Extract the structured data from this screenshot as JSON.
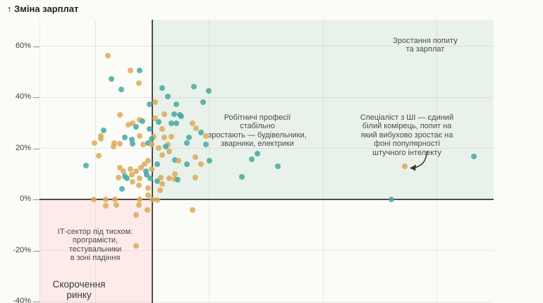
{
  "title": "↑ Зміна зарплат",
  "colors": {
    "teal": "#47a8a2",
    "orange": "#dcaa58",
    "quadrant_green_bg": "#e9f1eb",
    "quadrant_pink_bg": "#fcebe8",
    "axis_dark": "#4c4c4c",
    "page_bg": "#fbfbf8"
  },
  "annotations": {
    "growth": {
      "lines": [
        "Зростання попиту",
        "та зарплат"
      ]
    },
    "trades": {
      "lines": [
        "Робітничі професії",
        "стабільно",
        "зростають — будівельники,",
        "зварники, електрики"
      ]
    },
    "ai": {
      "lines": [
        "Спеціаліст з ШІ — єдиний",
        "білий комірець, попит на",
        "який вибухово зростає на",
        "фоні популярності",
        "штучного інтелекту"
      ]
    },
    "it_pressure": {
      "lines": [
        "ІТ-сектор під тиском:",
        "програмісти,",
        "тестувальники",
        "в зоні падіння"
      ]
    },
    "shrink": {
      "lines": [
        "Скорочення",
        "ринку"
      ]
    }
  },
  "chart_data": {
    "type": "scatter",
    "title": "Зміна зарплат",
    "ylabel": "Зміна зарплат",
    "y_unit": "%",
    "xlabel": "",
    "x_axis_note": "x tick labels not visible in crop; x given as screen px",
    "ylim": [
      -40,
      62
    ],
    "grid": true,
    "y_ticks": [
      {
        "label": "60%",
        "value": 60
      },
      {
        "label": "40%",
        "value": 40
      },
      {
        "label": "20%",
        "value": 20
      },
      {
        "label": "0%",
        "value": 0
      },
      {
        "label": "-20%",
        "value": -20
      },
      {
        "label": "-40%",
        "value": -40
      }
    ],
    "series_colors": {
      "t": "#47a8a2",
      "o": "#dcaa58"
    },
    "series_names": {
      "t": "teal",
      "o": "orange"
    },
    "points": [
      [
        153,
        56.3,
        "o"
      ],
      [
        185,
        50.5,
        "o"
      ],
      [
        198,
        50.5,
        "t"
      ],
      [
        158,
        47.2,
        "t"
      ],
      [
        197,
        45.5,
        "o"
      ],
      [
        172,
        43.0,
        "t"
      ],
      [
        230,
        43.6,
        "t"
      ],
      [
        275,
        44.1,
        "t"
      ],
      [
        238,
        40.3,
        "t"
      ],
      [
        296,
        42.5,
        "t"
      ],
      [
        288,
        38.1,
        "t"
      ],
      [
        220,
        38.1,
        "o"
      ],
      [
        212,
        37.2,
        "t"
      ],
      [
        250,
        37.2,
        "t"
      ],
      [
        170,
        33.1,
        "o"
      ],
      [
        233,
        33.4,
        "o"
      ],
      [
        247,
        33.4,
        "t"
      ],
      [
        255,
        33.1,
        "t"
      ],
      [
        257,
        32.6,
        "t"
      ],
      [
        220,
        31.7,
        "o"
      ],
      [
        198,
        31.2,
        "o"
      ],
      [
        202,
        30.6,
        "t"
      ],
      [
        225,
        30.3,
        "t"
      ],
      [
        243,
        29.8,
        "t"
      ],
      [
        250,
        29.8,
        "t"
      ],
      [
        273,
        29.8,
        "o"
      ],
      [
        182,
        29.2,
        "o"
      ],
      [
        188,
        29.8,
        "o"
      ],
      [
        193,
        28.4,
        "t"
      ],
      [
        212,
        27.6,
        "t"
      ],
      [
        230,
        27.6,
        "o"
      ],
      [
        278,
        27.9,
        "o"
      ],
      [
        285,
        26.2,
        "t"
      ],
      [
        147,
        27.0,
        "t"
      ],
      [
        143,
        24.8,
        "o"
      ],
      [
        143,
        23.7,
        "o"
      ],
      [
        177,
        24.3,
        "t"
      ],
      [
        198,
        24.8,
        "o"
      ],
      [
        187,
        23.4,
        "t"
      ],
      [
        218,
        24.6,
        "o"
      ],
      [
        215,
        23.7,
        "t"
      ],
      [
        233,
        24.3,
        "o"
      ],
      [
        243,
        24.6,
        "o"
      ],
      [
        268,
        24.3,
        "t"
      ],
      [
        292,
        24.8,
        "o"
      ],
      [
        134,
        22.1,
        "o"
      ],
      [
        162,
        22.1,
        "o"
      ],
      [
        170,
        21.8,
        "o"
      ],
      [
        188,
        21.8,
        "t"
      ],
      [
        203,
        21.5,
        "o"
      ],
      [
        210,
        22.1,
        "t"
      ],
      [
        215,
        21.5,
        "o"
      ],
      [
        238,
        21.5,
        "o"
      ],
      [
        265,
        22.1,
        "t"
      ],
      [
        292,
        21.5,
        "t"
      ],
      [
        225,
        20.1,
        "o"
      ],
      [
        235,
        20.7,
        "t"
      ],
      [
        161,
        20.7,
        "o"
      ],
      [
        140,
        17.1,
        "o"
      ],
      [
        240,
        18.8,
        "o"
      ],
      [
        230,
        17.4,
        "o"
      ],
      [
        277,
        16.6,
        "o"
      ],
      [
        248,
        15.4,
        "t"
      ],
      [
        253,
        15.2,
        "o"
      ],
      [
        297,
        15.2,
        "t"
      ],
      [
        210,
        15.2,
        "o"
      ],
      [
        365,
        17.9,
        "t"
      ],
      [
        357,
        15.7,
        "t"
      ],
      [
        122,
        13.2,
        "t"
      ],
      [
        265,
        13.8,
        "t"
      ],
      [
        285,
        13.8,
        "o"
      ],
      [
        205,
        13.8,
        "o"
      ],
      [
        223,
        13.8,
        "t"
      ],
      [
        170,
        12.4,
        "o"
      ],
      [
        185,
        11.9,
        "o"
      ],
      [
        200,
        12.4,
        "o"
      ],
      [
        394,
        13.0,
        "t"
      ],
      [
        574,
        13.0,
        "o"
      ],
      [
        672,
        16.8,
        "t"
      ],
      [
        175,
        11.0,
        "o"
      ],
      [
        193,
        11.0,
        "o"
      ],
      [
        207,
        11.0,
        "t"
      ],
      [
        215,
        11.9,
        "o"
      ],
      [
        248,
        9.9,
        "o"
      ],
      [
        187,
        9.7,
        "o"
      ],
      [
        208,
        9.7,
        "t"
      ],
      [
        228,
        8.6,
        "o"
      ],
      [
        230,
        6.1,
        "o"
      ],
      [
        248,
        8.0,
        "o"
      ],
      [
        177,
        9.1,
        "t"
      ],
      [
        180,
        8.3,
        "t"
      ],
      [
        213,
        8.3,
        "t"
      ],
      [
        198,
        8.3,
        "o"
      ],
      [
        168,
        8.6,
        "o"
      ],
      [
        277,
        8.6,
        "o"
      ],
      [
        252,
        7.7,
        "t"
      ],
      [
        343,
        8.8,
        "t"
      ],
      [
        188,
        6.9,
        "o"
      ],
      [
        197,
        5.5,
        "o"
      ],
      [
        210,
        4.4,
        "o"
      ],
      [
        223,
        7.2,
        "t"
      ],
      [
        240,
        8.3,
        "o"
      ],
      [
        227,
        3.6,
        "o"
      ],
      [
        210,
        1.7,
        "o"
      ],
      [
        173,
        4.1,
        "t"
      ],
      [
        133,
        0,
        "o"
      ],
      [
        150,
        0,
        "o"
      ],
      [
        163,
        0,
        "o"
      ],
      [
        198,
        0,
        "o"
      ],
      [
        216,
        0,
        "o"
      ],
      [
        223,
        -0.3,
        "o"
      ],
      [
        555,
        0,
        "t"
      ],
      [
        150,
        -2.5,
        "o"
      ],
      [
        165,
        -2.2,
        "o"
      ],
      [
        197,
        -2.2,
        "o"
      ],
      [
        209,
        -4.1,
        "o"
      ],
      [
        193,
        -6.1,
        "o"
      ],
      [
        273,
        -4.1,
        "o"
      ],
      [
        193,
        -18.2,
        "o"
      ]
    ]
  }
}
